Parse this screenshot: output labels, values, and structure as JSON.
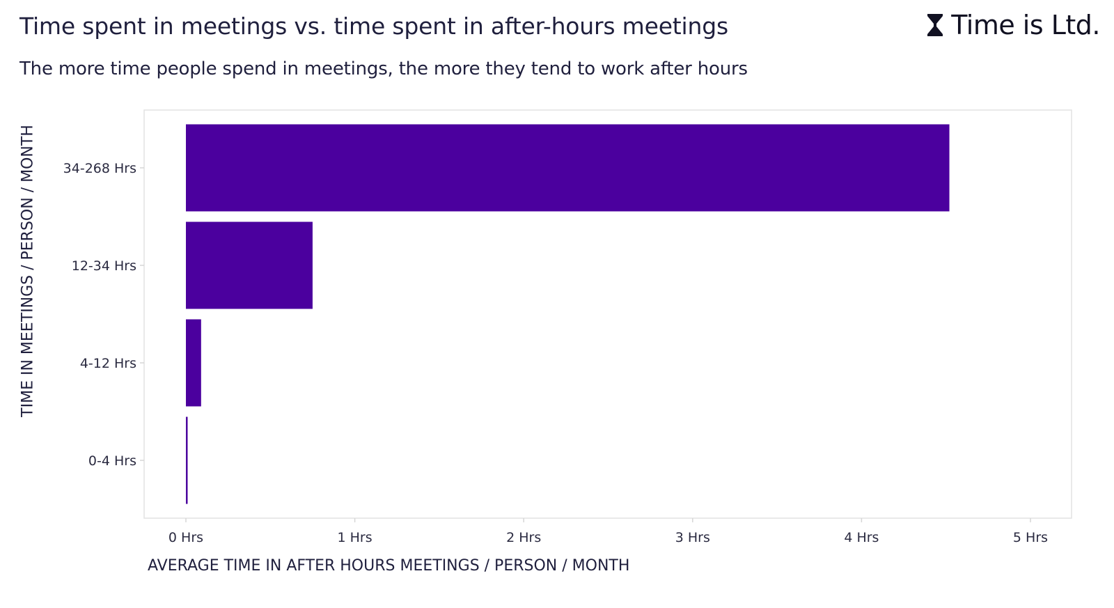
{
  "title": "Time spent in meetings vs. time spent in after-hours meetings",
  "subtitle": "The more time people spend in meetings, the more they tend to work after hours",
  "brand": {
    "text": "Time is Ltd.",
    "icon": "hourglass-icon"
  },
  "colors": {
    "bar": "#4b009e",
    "text": "#1f1f3d",
    "axis": "#d6d6d6"
  },
  "chart_data": {
    "type": "bar",
    "orientation": "horizontal",
    "title": "Time spent in meetings vs. time spent in after-hours meetings",
    "subtitle": "The more time people spend in meetings, the more they tend to work after hours",
    "xlabel": "AVERAGE TIME IN AFTER HOURS MEETINGS / PERSON / MONTH",
    "ylabel": "TIME IN MEETINGS / PERSON / MONTH",
    "categories": [
      "34-268 Hrs",
      "12-34 Hrs",
      "4-12 Hrs",
      "0-4 Hrs"
    ],
    "values": [
      4.52,
      0.75,
      0.09,
      0.01
    ],
    "xlim": [
      0,
      5
    ],
    "xticks": [
      {
        "value": 0,
        "label": "0 Hrs"
      },
      {
        "value": 1,
        "label": "1 Hrs"
      },
      {
        "value": 2,
        "label": "2 Hrs"
      },
      {
        "value": 3,
        "label": "3 Hrs"
      },
      {
        "value": 4,
        "label": "4 Hrs"
      },
      {
        "value": 5,
        "label": "5 Hrs"
      }
    ],
    "grid": false,
    "legend": "none"
  }
}
